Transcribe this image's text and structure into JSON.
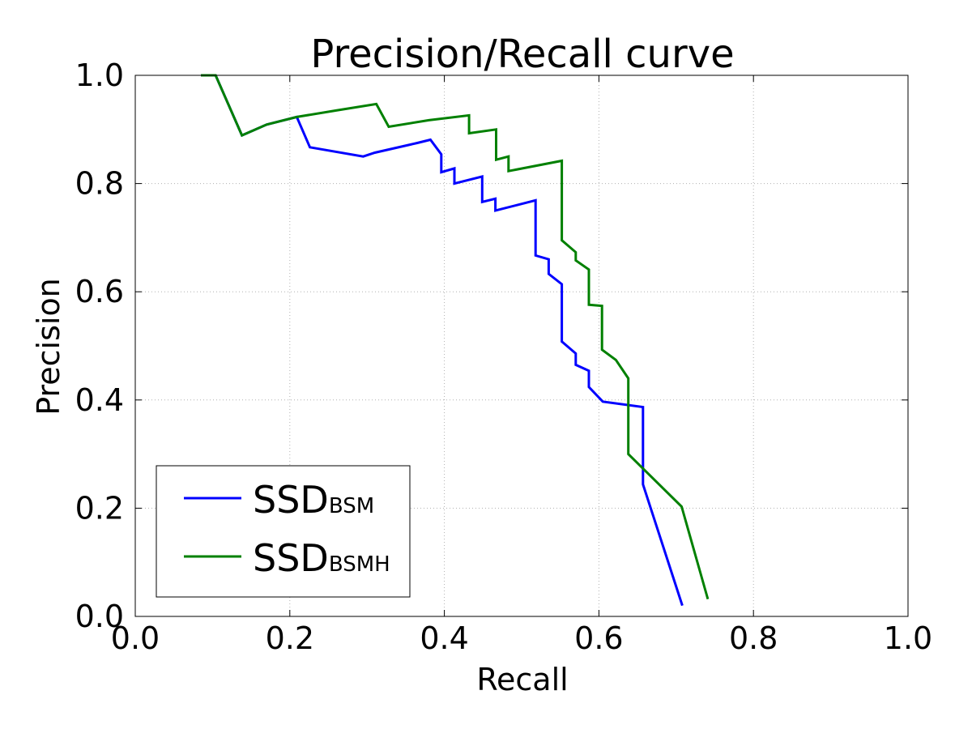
{
  "chart_data": {
    "type": "line",
    "title": "Precision/Recall curve",
    "xlabel": "Recall",
    "ylabel": "Precision",
    "xlim": [
      0.0,
      1.0
    ],
    "ylim": [
      0.0,
      1.0
    ],
    "xticks": [
      "0.0",
      "0.2",
      "0.4",
      "0.6",
      "0.8",
      "1.0"
    ],
    "yticks": [
      "0.0",
      "0.2",
      "0.4",
      "0.6",
      "0.8",
      "1.0"
    ],
    "grid": true,
    "legend_position": "lower-left",
    "series": [
      {
        "name": "SSD",
        "name_subscript": "BSM",
        "color": "#0000ff",
        "points": [
          [
            0.085,
            1.0
          ],
          [
            0.104,
            1.0
          ],
          [
            0.138,
            0.889
          ],
          [
            0.17,
            0.909
          ],
          [
            0.209,
            0.923
          ],
          [
            0.226,
            0.867
          ],
          [
            0.295,
            0.85
          ],
          [
            0.31,
            0.857
          ],
          [
            0.365,
            0.875
          ],
          [
            0.382,
            0.881
          ],
          [
            0.396,
            0.854
          ],
          [
            0.396,
            0.821
          ],
          [
            0.413,
            0.828
          ],
          [
            0.413,
            0.8
          ],
          [
            0.449,
            0.813
          ],
          [
            0.449,
            0.766
          ],
          [
            0.466,
            0.772
          ],
          [
            0.466,
            0.75
          ],
          [
            0.518,
            0.769
          ],
          [
            0.518,
            0.667
          ],
          [
            0.535,
            0.66
          ],
          [
            0.535,
            0.633
          ],
          [
            0.552,
            0.614
          ],
          [
            0.552,
            0.508
          ],
          [
            0.57,
            0.486
          ],
          [
            0.57,
            0.465
          ],
          [
            0.587,
            0.454
          ],
          [
            0.587,
            0.424
          ],
          [
            0.605,
            0.397
          ],
          [
            0.657,
            0.387
          ],
          [
            0.657,
            0.244
          ],
          [
            0.708,
            0.02
          ]
        ]
      },
      {
        "name": "SSD",
        "name_subscript": "BSMH",
        "color": "#008000",
        "points": [
          [
            0.085,
            1.0
          ],
          [
            0.104,
            1.0
          ],
          [
            0.138,
            0.889
          ],
          [
            0.17,
            0.909
          ],
          [
            0.209,
            0.923
          ],
          [
            0.26,
            0.935
          ],
          [
            0.312,
            0.947
          ],
          [
            0.328,
            0.905
          ],
          [
            0.38,
            0.917
          ],
          [
            0.432,
            0.926
          ],
          [
            0.432,
            0.893
          ],
          [
            0.467,
            0.9
          ],
          [
            0.467,
            0.844
          ],
          [
            0.483,
            0.85
          ],
          [
            0.483,
            0.823
          ],
          [
            0.552,
            0.842
          ],
          [
            0.552,
            0.695
          ],
          [
            0.57,
            0.673
          ],
          [
            0.57,
            0.658
          ],
          [
            0.587,
            0.641
          ],
          [
            0.587,
            0.576
          ],
          [
            0.604,
            0.574
          ],
          [
            0.604,
            0.493
          ],
          [
            0.622,
            0.474
          ],
          [
            0.638,
            0.44
          ],
          [
            0.638,
            0.3
          ],
          [
            0.707,
            0.203
          ],
          [
            0.741,
            0.032
          ]
        ]
      }
    ]
  }
}
